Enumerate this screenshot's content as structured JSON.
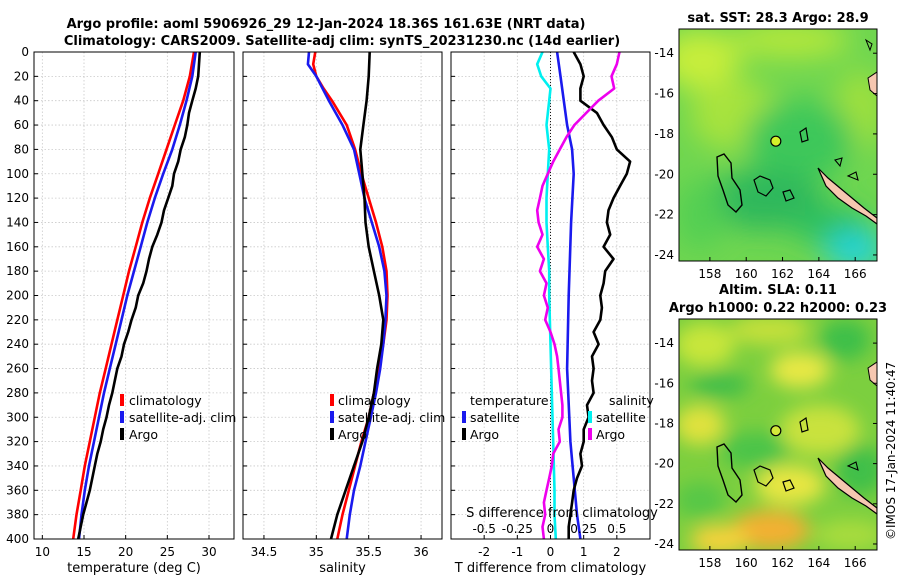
{
  "title": {
    "line1": "Argo profile: aoml 5906926_29 12-Jan-2024 18.36S 161.63E (NRT data)",
    "line2": "Climatology: CARS2009. Satellite-adj clim: synTS_20231230.nc (14d earlier)"
  },
  "colors": {
    "climatology": "#ff0000",
    "satellite": "#1a1aee",
    "argo": "#000000",
    "t_diff_satellite": "#1a1aee",
    "s_diff_satellite": "#00f0f0",
    "s_diff_argo": "#ee00ee"
  },
  "chart_data": [
    {
      "id": "temperature",
      "type": "line",
      "xlabel": "temperature (deg C)",
      "ylabel": "",
      "xlim": [
        9,
        33
      ],
      "ylim": [
        400,
        0
      ],
      "xticks": [
        10,
        15,
        20,
        25,
        30
      ],
      "yticks": [
        0,
        20,
        40,
        60,
        80,
        100,
        120,
        140,
        160,
        180,
        200,
        220,
        240,
        260,
        280,
        300,
        320,
        340,
        360,
        380,
        400
      ],
      "grid": true,
      "legend": {
        "position": "bottom-right",
        "entries": [
          "climatology",
          "satellite-adj. clim",
          "Argo"
        ]
      },
      "series": [
        {
          "name": "climatology",
          "color": "#ff0000",
          "depth": [
            0,
            20,
            40,
            60,
            80,
            100,
            120,
            140,
            160,
            180,
            200,
            220,
            240,
            260,
            280,
            300,
            320,
            340,
            360,
            380,
            400
          ],
          "values": [
            28.2,
            27.7,
            26.9,
            25.9,
            24.9,
            23.9,
            22.9,
            22.0,
            21.2,
            20.4,
            19.7,
            19.0,
            18.3,
            17.6,
            16.9,
            16.3,
            15.7,
            15.1,
            14.6,
            14.1,
            13.7
          ]
        },
        {
          "name": "satellite-adj. clim",
          "color": "#1a1aee",
          "depth": [
            0,
            20,
            40,
            60,
            80,
            100,
            120,
            140,
            160,
            180,
            200,
            220,
            240,
            260,
            280,
            300,
            320,
            340,
            360,
            380,
            400
          ],
          "values": [
            28.4,
            28.0,
            27.3,
            26.5,
            25.6,
            24.5,
            23.5,
            22.6,
            21.8,
            21.0,
            20.2,
            19.5,
            18.8,
            18.1,
            17.4,
            16.8,
            16.2,
            15.6,
            15.1,
            14.7,
            14.4
          ]
        },
        {
          "name": "Argo",
          "color": "#000000",
          "depth": [
            0,
            10,
            20,
            30,
            40,
            50,
            60,
            70,
            80,
            90,
            100,
            110,
            120,
            130,
            140,
            150,
            160,
            170,
            180,
            190,
            200,
            210,
            220,
            230,
            240,
            250,
            260,
            270,
            280,
            290,
            300,
            310,
            320,
            330,
            340,
            350,
            360,
            370,
            380,
            390,
            400
          ],
          "values": [
            28.9,
            28.8,
            28.7,
            28.4,
            28.0,
            27.6,
            27.4,
            27.1,
            26.6,
            26.3,
            25.8,
            25.6,
            25.1,
            24.6,
            24.3,
            23.8,
            23.2,
            22.8,
            22.5,
            22.1,
            21.5,
            21.2,
            20.7,
            20.3,
            19.8,
            19.5,
            19.0,
            18.7,
            18.4,
            18.0,
            17.7,
            17.3,
            17.0,
            16.6,
            16.3,
            16.0,
            15.7,
            15.3,
            14.9,
            14.6,
            14.3
          ]
        }
      ]
    },
    {
      "id": "salinity",
      "type": "line",
      "xlabel": "salinity",
      "ylabel": "",
      "xlim": [
        34.3,
        36.2
      ],
      "ylim": [
        400,
        0
      ],
      "xticks": [
        34.5,
        35,
        35.5,
        36
      ],
      "grid": true,
      "legend": {
        "position": "bottom-right",
        "entries": [
          "climatology",
          "satellite-adj. clim",
          "Argo"
        ]
      },
      "series": [
        {
          "name": "climatology",
          "color": "#ff0000",
          "depth": [
            0,
            10,
            20,
            30,
            40,
            60,
            80,
            100,
            120,
            140,
            160,
            180,
            200,
            220,
            240,
            260,
            280,
            300,
            320,
            340,
            360,
            380,
            400
          ],
          "values": [
            34.99,
            34.97,
            35.0,
            35.07,
            35.15,
            35.29,
            35.37,
            35.43,
            35.5,
            35.57,
            35.63,
            35.67,
            35.68,
            35.67,
            35.64,
            35.6,
            35.55,
            35.5,
            35.43,
            35.37,
            35.31,
            35.25,
            35.2
          ]
        },
        {
          "name": "satellite-adj. clim",
          "color": "#1a1aee",
          "depth": [
            0,
            10,
            20,
            30,
            40,
            60,
            80,
            100,
            120,
            140,
            160,
            180,
            200,
            220,
            240,
            260,
            280,
            300,
            320,
            340,
            360,
            380,
            400
          ],
          "values": [
            34.93,
            34.92,
            35.0,
            35.06,
            35.12,
            35.25,
            35.36,
            35.41,
            35.46,
            35.53,
            35.6,
            35.65,
            35.67,
            35.66,
            35.64,
            35.61,
            35.57,
            35.52,
            35.47,
            35.42,
            35.36,
            35.32,
            35.29
          ]
        },
        {
          "name": "Argo",
          "color": "#000000",
          "depth": [
            0,
            20,
            40,
            60,
            80,
            100,
            120,
            140,
            160,
            180,
            200,
            220,
            240,
            260,
            280,
            300,
            320,
            340,
            360,
            380,
            400
          ],
          "values": [
            35.51,
            35.5,
            35.48,
            35.45,
            35.42,
            35.44,
            35.46,
            35.47,
            35.5,
            35.55,
            35.6,
            35.64,
            35.62,
            35.58,
            35.55,
            35.5,
            35.44,
            35.36,
            35.28,
            35.2,
            35.14
          ]
        }
      ]
    },
    {
      "id": "differences",
      "type": "line",
      "xlabel": "T difference from climatology",
      "xlabel_top": "S difference from climatology",
      "xlim": [
        -3,
        3
      ],
      "ylim": [
        400,
        0
      ],
      "xticks": [
        -2,
        -1,
        0,
        1,
        2
      ],
      "xticks_s": [
        "-0.5",
        "-0.25",
        "0",
        "0.25",
        "0.5"
      ],
      "grid": true,
      "legend": {
        "position": "bottom-right",
        "left_title": "temperature",
        "right_title": "salinity",
        "left_entries": [
          "satellite",
          "Argo"
        ],
        "right_entries": [
          "satellite",
          "Argo"
        ]
      },
      "series": [
        {
          "name": "T satellite",
          "color": "#1a1aee",
          "depth": [
            0,
            20,
            40,
            60,
            80,
            100,
            140,
            200,
            260,
            320,
            380,
            400
          ],
          "values": [
            0.2,
            0.3,
            0.4,
            0.5,
            0.65,
            0.7,
            0.62,
            0.55,
            0.5,
            0.6,
            0.8,
            0.9
          ]
        },
        {
          "name": "T Argo",
          "color": "#000000",
          "depth": [
            0,
            10,
            20,
            30,
            40,
            50,
            60,
            70,
            80,
            90,
            100,
            110,
            120,
            130,
            140,
            150,
            160,
            170,
            180,
            190,
            200,
            210,
            220,
            230,
            240,
            250,
            260,
            270,
            280,
            290,
            300,
            310,
            320,
            330,
            340,
            350,
            360,
            370,
            380,
            390,
            400
          ],
          "values": [
            0.7,
            0.9,
            1.0,
            0.9,
            0.9,
            1.4,
            1.6,
            1.85,
            2.0,
            2.4,
            2.3,
            2.1,
            1.9,
            1.75,
            1.7,
            1.8,
            1.6,
            1.9,
            1.65,
            1.6,
            1.5,
            1.55,
            1.5,
            1.3,
            1.45,
            1.25,
            1.3,
            1.25,
            1.3,
            1.1,
            1.15,
            1.0,
            1.0,
            0.9,
            0.95,
            0.8,
            0.7,
            0.65,
            0.6,
            0.55,
            0.55
          ]
        },
        {
          "name": "S satellite",
          "color": "#00f0f0",
          "depth": [
            0,
            10,
            20,
            30,
            40,
            60,
            80,
            100,
            120,
            140,
            160,
            180,
            200,
            240,
            280,
            320,
            360,
            380,
            400
          ],
          "values": [
            -0.06,
            -0.1,
            -0.07,
            0.0,
            -0.01,
            -0.03,
            -0.01,
            -0.02,
            -0.03,
            -0.03,
            -0.02,
            -0.01,
            -0.01,
            0.0,
            0.01,
            0.02,
            0.03,
            0.03,
            0.04
          ]
        },
        {
          "name": "S Argo",
          "color": "#ee00ee",
          "depth": [
            0,
            10,
            20,
            30,
            40,
            50,
            60,
            70,
            80,
            90,
            100,
            110,
            120,
            130,
            140,
            150,
            160,
            170,
            180,
            190,
            200,
            210,
            220,
            230,
            240,
            250,
            260,
            270,
            280,
            290,
            300,
            310,
            320,
            330,
            340,
            350,
            360,
            370,
            380,
            390,
            400
          ],
          "values": [
            0.52,
            0.5,
            0.46,
            0.48,
            0.36,
            0.27,
            0.18,
            0.12,
            0.07,
            0.02,
            -0.02,
            -0.06,
            -0.08,
            -0.1,
            -0.09,
            -0.06,
            -0.1,
            -0.05,
            -0.08,
            -0.03,
            -0.05,
            -0.02,
            -0.04,
            0.0,
            0.03,
            0.05,
            0.06,
            0.07,
            0.08,
            0.09,
            0.09,
            0.06,
            0.07,
            0.02,
            0.01,
            -0.01,
            -0.03,
            -0.05,
            -0.04,
            -0.06,
            -0.05
          ]
        }
      ]
    },
    {
      "id": "sst-map",
      "type": "heatmap",
      "title": "sat. SST: 28.3 Argo: 28.9",
      "xlim": [
        156.3,
        167.2
      ],
      "ylim": [
        -24.3,
        -12.8
      ],
      "xticks": [
        158,
        160,
        162,
        164,
        166
      ],
      "yticks": [
        -14,
        -16,
        -18,
        -20,
        -22,
        -24
      ],
      "argo_position": {
        "lon": 161.63,
        "lat": -18.36
      }
    },
    {
      "id": "sla-map",
      "type": "heatmap",
      "title_line1": "Altim. SLA: 0.11",
      "title_line2": "Argo h1000: 0.22 h2000: 0.23",
      "xlim": [
        156.3,
        167.2
      ],
      "ylim": [
        -24.3,
        -12.8
      ],
      "xticks": [
        158,
        160,
        162,
        164,
        166
      ],
      "yticks": [
        -14,
        -16,
        -18,
        -20,
        -22,
        -24
      ],
      "argo_position": {
        "lon": 161.63,
        "lat": -18.36
      }
    }
  ],
  "credit": "©IMOS 17-Jan-2024 11:40:47"
}
